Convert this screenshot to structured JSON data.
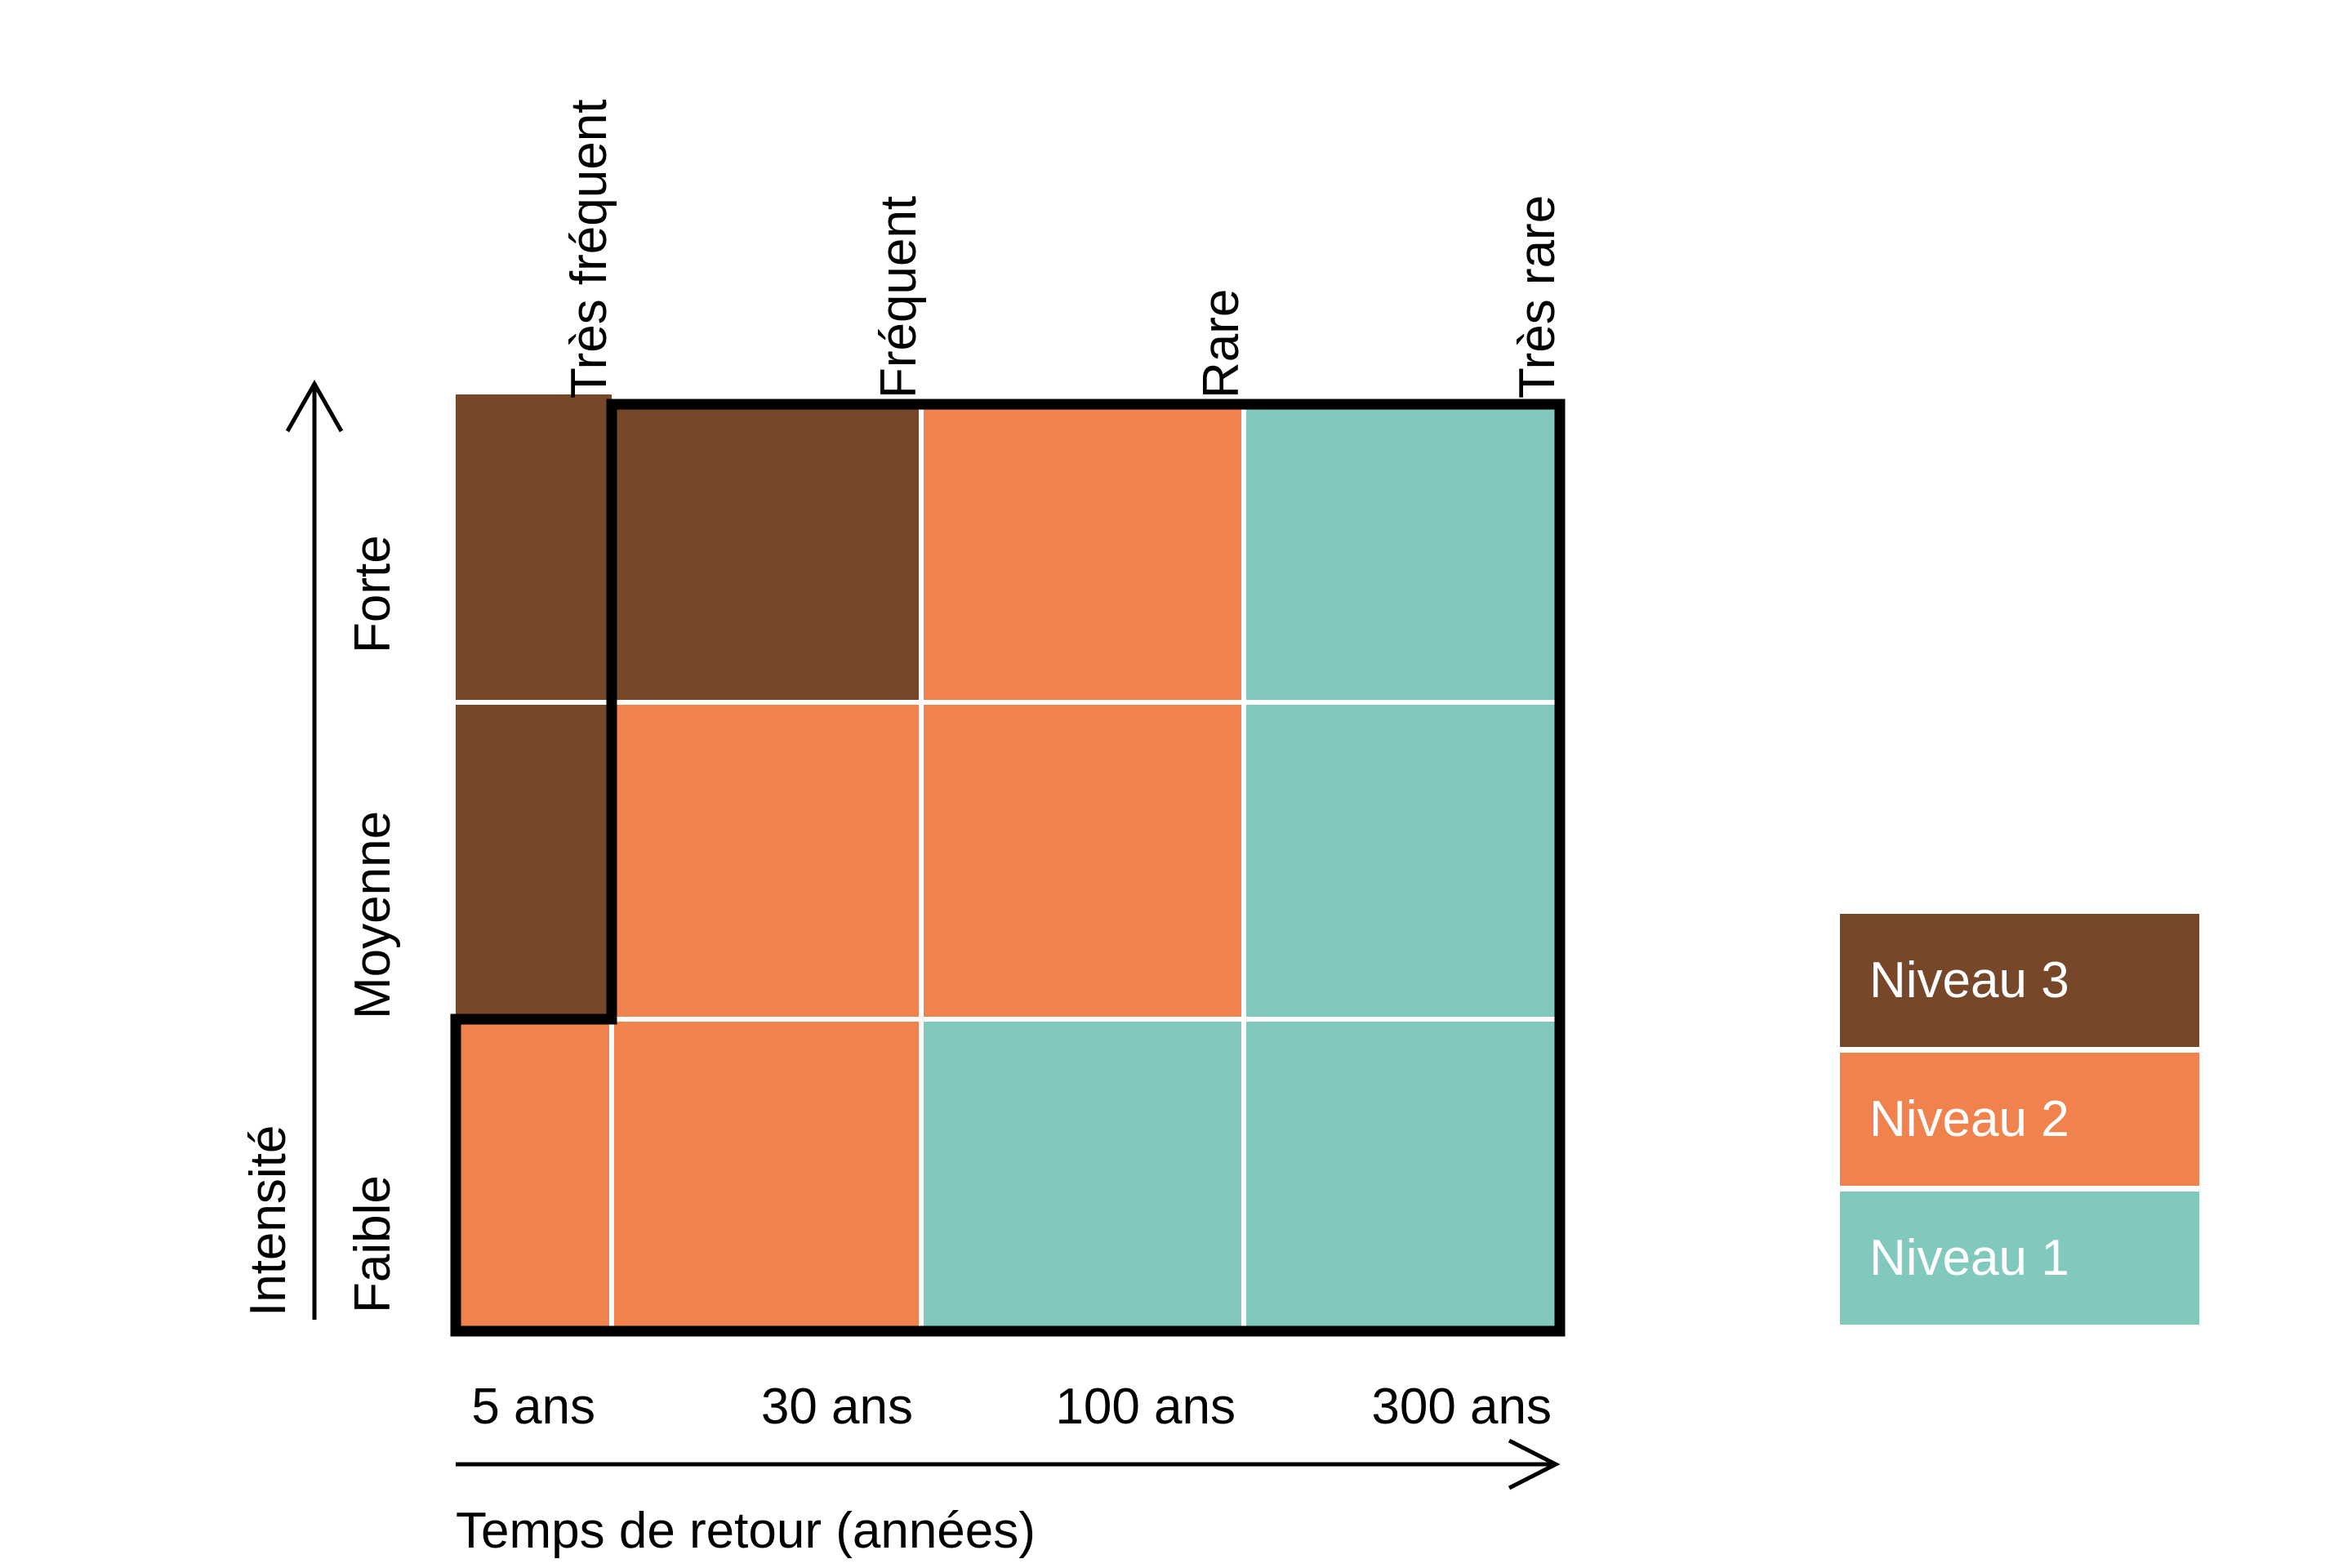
{
  "chart_data": {
    "type": "heatmap",
    "xlabel": "Temps de retour (années)",
    "ylabel": "Intensité",
    "x_tick_labels": [
      "5 ans",
      "30 ans",
      "100 ans",
      "300 ans"
    ],
    "frequency_labels": [
      "Très fréquent",
      "Fréquent",
      "Rare",
      "Très rare"
    ],
    "intensity_labels": [
      "Forte",
      "Moyenne",
      "Faible"
    ],
    "matrix_rows_top_to_bottom": [
      "Forte",
      "Moyenne",
      "Faible"
    ],
    "matrix_columns_left_to_right": [
      "Très fréquent (5 ans)",
      "Fréquent (30 ans)",
      "Rare (100 ans)",
      "Très rare (300 ans)"
    ],
    "matrix_levels": [
      [
        3,
        3,
        2,
        1
      ],
      [
        3,
        2,
        2,
        1
      ],
      [
        2,
        2,
        1,
        1
      ]
    ],
    "level_colors": {
      "1": "#81C8BD",
      "2": "#F0834D",
      "3": "#774729"
    },
    "gridline_color": "#FFFFFF",
    "outline_color": "#000000",
    "axis_color": "#000000",
    "legend_position": "right"
  },
  "legend": {
    "items": [
      {
        "label": "Niveau 3",
        "level": 3,
        "color": "#774729",
        "text_color": "#FFFFFF"
      },
      {
        "label": "Niveau 2",
        "level": 2,
        "color": "#F0834D",
        "text_color": "#FFFFFF"
      },
      {
        "label": "Niveau 1",
        "level": 1,
        "color": "#81C8BD",
        "text_color": "#FFFFFF"
      }
    ]
  }
}
